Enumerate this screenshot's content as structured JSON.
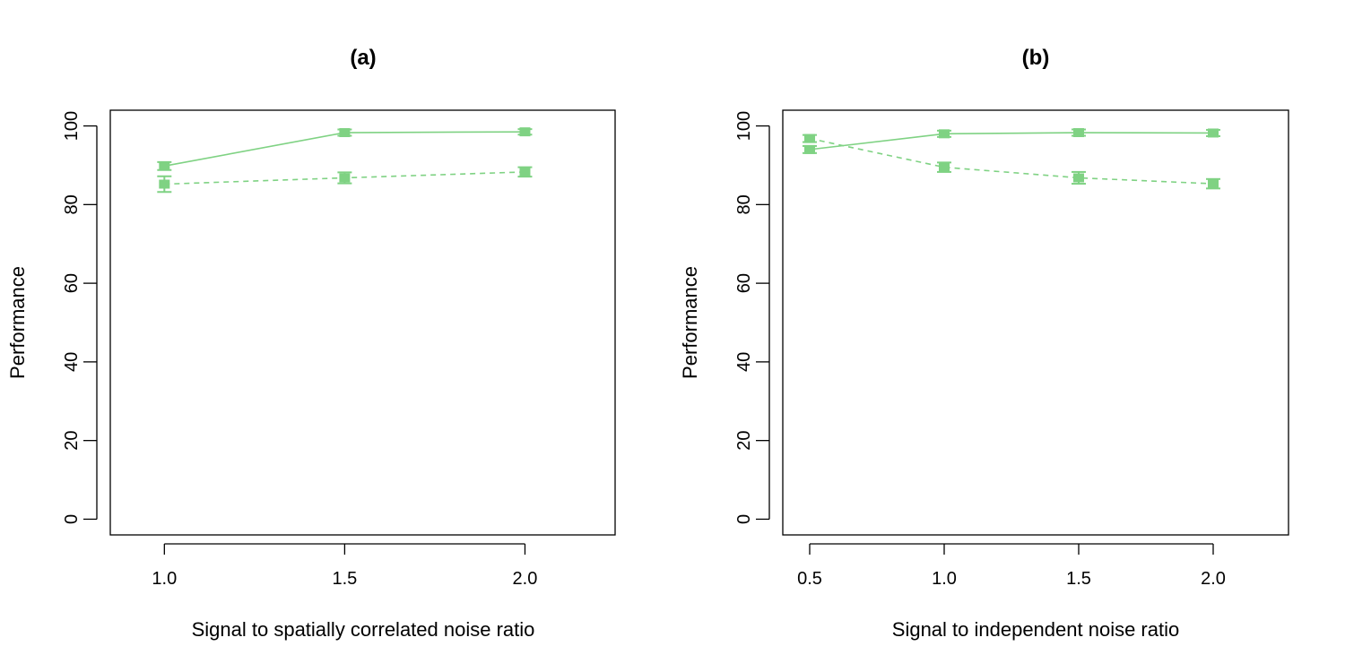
{
  "colors": {
    "series": "#7fd283",
    "axis": "#000000",
    "background": "#ffffff"
  },
  "chart_data": [
    {
      "type": "line",
      "title": "(a)",
      "xlabel": "Signal to spatially correlated noise ratio",
      "ylabel": "Performance",
      "x_ticks": [
        "1.0",
        "1.5",
        "2.0"
      ],
      "y_ticks": [
        "0",
        "20",
        "40",
        "60",
        "80",
        "100"
      ],
      "xlim": [
        0.85,
        2.25
      ],
      "ylim": [
        -4,
        104
      ],
      "error_bars": true,
      "series": [
        {
          "style": "solid",
          "x": [
            1.0,
            1.5,
            2.0
          ],
          "y": [
            89.8,
            98.3,
            98.5
          ],
          "err": [
            1.0,
            0.8,
            0.7
          ]
        },
        {
          "style": "dashed",
          "x": [
            1.0,
            1.5,
            2.0
          ],
          "y": [
            85.2,
            86.8,
            88.3
          ],
          "err": [
            2.0,
            1.4,
            1.2
          ]
        }
      ]
    },
    {
      "type": "line",
      "title": "(b)",
      "xlabel": "Signal to independent noise ratio",
      "ylabel": "Performance",
      "x_ticks": [
        "0.5",
        "1.0",
        "1.5",
        "2.0"
      ],
      "y_ticks": [
        "0",
        "20",
        "40",
        "60",
        "80",
        "100"
      ],
      "xlim": [
        0.4,
        2.28
      ],
      "ylim": [
        -4,
        104
      ],
      "error_bars": true,
      "series": [
        {
          "style": "solid",
          "x": [
            0.5,
            1.0,
            1.5,
            2.0
          ],
          "y": [
            94.0,
            98.0,
            98.3,
            98.2
          ],
          "err": [
            0.9,
            0.8,
            0.8,
            0.8
          ]
        },
        {
          "style": "dashed",
          "x": [
            0.5,
            1.0,
            1.5,
            2.0
          ],
          "y": [
            96.8,
            89.5,
            86.8,
            85.3
          ],
          "err": [
            0.9,
            1.2,
            1.5,
            1.2
          ]
        }
      ]
    }
  ]
}
